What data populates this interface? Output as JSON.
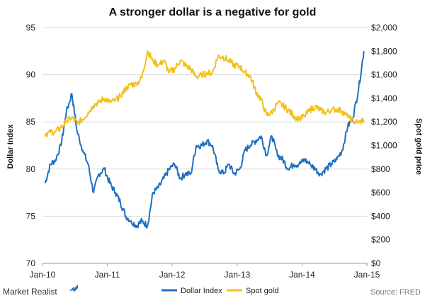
{
  "chart_data": {
    "type": "line",
    "title": "A stronger dollar is a negative for gold",
    "left_axis": {
      "label": "Dollar Index",
      "ylim": [
        70,
        95
      ],
      "ticks": [
        70,
        75,
        80,
        85,
        90,
        95
      ],
      "tick_labels": [
        "70",
        "75",
        "80",
        "85",
        "90",
        "95"
      ]
    },
    "right_axis": {
      "label": "Spot gold price",
      "ylim": [
        0,
        2000
      ],
      "ticks": [
        0,
        200,
        400,
        600,
        800,
        1000,
        1200,
        1400,
        1600,
        1800,
        2000
      ],
      "tick_labels": [
        "$0",
        "$200",
        "$400",
        "$600",
        "$800",
        "$1,000",
        "$1,200",
        "$1,400",
        "$1,600",
        "$1,800",
        "$2,000"
      ]
    },
    "x_axis": {
      "range": [
        "2010-01-01",
        "2015-01-01"
      ],
      "tick_labels": [
        "Jan-10",
        "Jan-11",
        "Jan-12",
        "Jan-13",
        "Jan-14",
        "Jan-15"
      ]
    },
    "grid": true,
    "legend_position": "bottom",
    "series": [
      {
        "name": "Dollar Index",
        "axis": "left",
        "color": "#1f6fbf",
        "x": [
          "2010-01",
          "2010-02",
          "2010-03",
          "2010-04",
          "2010-05",
          "2010-06",
          "2010-07",
          "2010-08",
          "2010-09",
          "2010-10",
          "2010-11",
          "2010-12",
          "2011-01",
          "2011-02",
          "2011-03",
          "2011-04",
          "2011-05",
          "2011-06",
          "2011-07",
          "2011-08",
          "2011-09",
          "2011-10",
          "2011-11",
          "2011-12",
          "2012-01",
          "2012-02",
          "2012-03",
          "2012-04",
          "2012-05",
          "2012-06",
          "2012-07",
          "2012-08",
          "2012-09",
          "2012-10",
          "2012-11",
          "2012-12",
          "2013-01",
          "2013-02",
          "2013-03",
          "2013-04",
          "2013-05",
          "2013-06",
          "2013-07",
          "2013-08",
          "2013-09",
          "2013-10",
          "2013-11",
          "2013-12",
          "2014-01",
          "2014-02",
          "2014-03",
          "2014-04",
          "2014-05",
          "2014-06",
          "2014-07",
          "2014-08",
          "2014-09",
          "2014-10",
          "2014-11",
          "2014-12"
        ],
        "values": [
          78.5,
          80.5,
          81,
          82.5,
          86,
          88,
          84,
          82,
          80.5,
          77.5,
          79.5,
          80,
          78.5,
          77.5,
          76.5,
          75,
          74.5,
          74,
          74.5,
          74,
          77.5,
          78,
          79,
          80,
          80.5,
          79,
          79.5,
          79.5,
          82.5,
          82.5,
          83,
          82.5,
          80,
          79.5,
          80.5,
          79.5,
          80,
          82,
          82.5,
          83,
          83.5,
          81.5,
          83.5,
          81.5,
          81,
          80,
          80.5,
          80.5,
          81,
          80.5,
          80,
          79.5,
          80,
          80.5,
          81,
          82,
          84.5,
          85.5,
          88.5,
          92.5
        ]
      },
      {
        "name": "Spot gold",
        "axis": "right",
        "color": "#f2c01e",
        "x": [
          "2010-01",
          "2010-02",
          "2010-03",
          "2010-04",
          "2010-05",
          "2010-06",
          "2010-07",
          "2010-08",
          "2010-09",
          "2010-10",
          "2010-11",
          "2010-12",
          "2011-01",
          "2011-02",
          "2011-03",
          "2011-04",
          "2011-05",
          "2011-06",
          "2011-07",
          "2011-08",
          "2011-09",
          "2011-10",
          "2011-11",
          "2011-12",
          "2012-01",
          "2012-02",
          "2012-03",
          "2012-04",
          "2012-05",
          "2012-06",
          "2012-07",
          "2012-08",
          "2012-09",
          "2012-10",
          "2012-11",
          "2012-12",
          "2013-01",
          "2013-02",
          "2013-03",
          "2013-04",
          "2013-05",
          "2013-06",
          "2013-07",
          "2013-08",
          "2013-09",
          "2013-10",
          "2013-11",
          "2013-12",
          "2014-01",
          "2014-02",
          "2014-03",
          "2014-04",
          "2014-05",
          "2014-06",
          "2014-07",
          "2014-08",
          "2014-09",
          "2014-10",
          "2014-11",
          "2014-12"
        ],
        "values": [
          1100,
          1110,
          1120,
          1150,
          1200,
          1240,
          1190,
          1220,
          1280,
          1340,
          1370,
          1400,
          1370,
          1380,
          1420,
          1480,
          1520,
          1520,
          1580,
          1800,
          1720,
          1680,
          1720,
          1620,
          1650,
          1720,
          1680,
          1650,
          1580,
          1600,
          1610,
          1620,
          1760,
          1750,
          1720,
          1680,
          1670,
          1620,
          1590,
          1460,
          1390,
          1260,
          1280,
          1360,
          1340,
          1300,
          1250,
          1220,
          1250,
          1300,
          1330,
          1300,
          1280,
          1300,
          1310,
          1290,
          1240,
          1210,
          1190,
          1220
        ]
      }
    ]
  },
  "branding": {
    "logo_text": "Market Realist",
    "source": "Source: FRED"
  }
}
